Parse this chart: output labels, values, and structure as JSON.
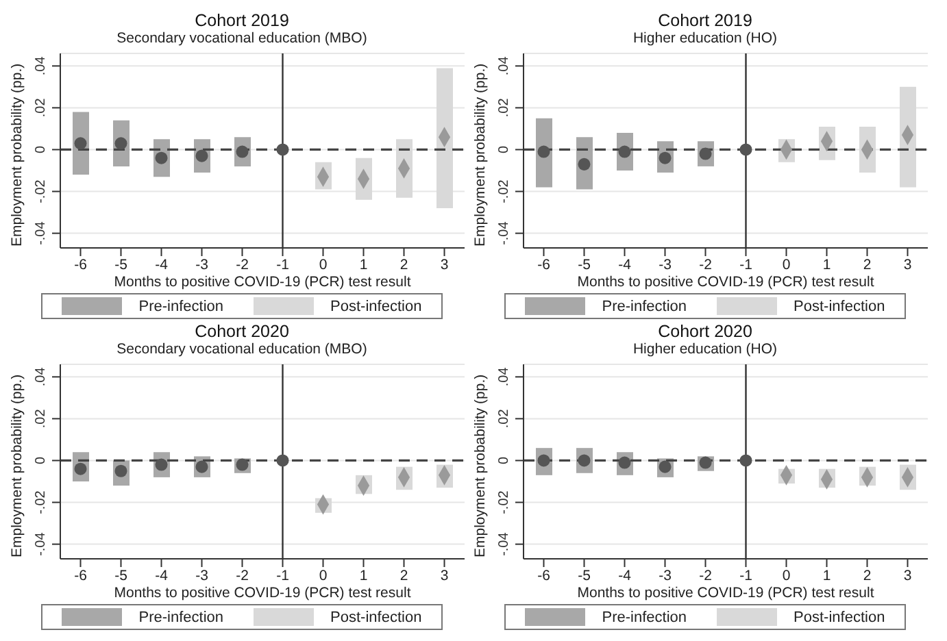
{
  "chart_data": [
    {
      "type": "bar",
      "title": "Cohort 2019",
      "subtitle": "Secondary vocational education (MBO)",
      "xlabel": "Months to positive COVID-19 (PCR) test result",
      "ylabel": "Employment probability (pp.)",
      "categories": [
        "-6",
        "-5",
        "-4",
        "-3",
        "-2",
        "-1",
        "0",
        "1",
        "2",
        "3"
      ],
      "ylim": [
        -0.047,
        0.046
      ],
      "yticks": [
        {
          "value": -0.04,
          "label": "-.04"
        },
        {
          "value": -0.02,
          "label": "-.02"
        },
        {
          "value": 0,
          "label": "0"
        },
        {
          "value": 0.02,
          "label": ".02"
        },
        {
          "value": 0.04,
          "label": ".04"
        }
      ],
      "grid": "y",
      "legend": "bottom",
      "series": [
        {
          "name": "Pre-infection",
          "color": "#a8a8a8",
          "base": [
            -0.012,
            -0.008,
            -0.013,
            -0.011,
            -0.008,
            null,
            null,
            null,
            null,
            null
          ],
          "values": [
            0.03,
            0.022,
            0.018,
            0.016,
            0.014,
            null,
            null,
            null,
            null,
            null
          ]
        },
        {
          "name": "Post-infection",
          "color": "#d9d9d9",
          "base": [
            null,
            null,
            null,
            null,
            null,
            null,
            -0.019,
            -0.024,
            -0.023,
            -0.028
          ],
          "values": [
            null,
            null,
            null,
            null,
            null,
            null,
            0.013,
            0.02,
            0.028,
            0.067
          ]
        },
        {
          "type": "scatter",
          "marker": "circle",
          "color": "#555555",
          "x": [
            "-6",
            "-5",
            "-4",
            "-3",
            "-2",
            "-1"
          ],
          "values": [
            0.003,
            0.003,
            -0.004,
            -0.003,
            -0.001,
            0
          ]
        },
        {
          "type": "scatter",
          "marker": "diamond",
          "color": "#9a9a9a",
          "x": [
            "0",
            "1",
            "2",
            "3"
          ],
          "values": [
            -0.013,
            -0.014,
            -0.009,
            0.006
          ]
        }
      ],
      "ref_lines": [
        {
          "axis": "x",
          "value": "-1",
          "color": "#333333",
          "line_style": "solid"
        },
        {
          "axis": "y",
          "value": 0,
          "color": "#444444",
          "line_style": "dashed"
        }
      ]
    },
    {
      "type": "bar",
      "title": "Cohort 2019",
      "subtitle": "Higher education (HO)",
      "xlabel": "Months to positive COVID-19 (PCR) test result",
      "ylabel": "Employment probability (pp.)",
      "categories": [
        "-6",
        "-5",
        "-4",
        "-3",
        "-2",
        "-1",
        "0",
        "1",
        "2",
        "3"
      ],
      "ylim": [
        -0.047,
        0.046
      ],
      "yticks": [
        {
          "value": -0.04,
          "label": "-.04"
        },
        {
          "value": -0.02,
          "label": "-.02"
        },
        {
          "value": 0,
          "label": "0"
        },
        {
          "value": 0.02,
          "label": ".02"
        },
        {
          "value": 0.04,
          "label": ".04"
        }
      ],
      "grid": "y",
      "legend": "bottom",
      "series": [
        {
          "name": "Pre-infection",
          "color": "#a8a8a8",
          "base": [
            -0.018,
            -0.019,
            -0.01,
            -0.011,
            -0.008,
            null,
            null,
            null,
            null,
            null
          ],
          "values": [
            0.033,
            0.025,
            0.018,
            0.015,
            0.012,
            null,
            null,
            null,
            null,
            null
          ]
        },
        {
          "name": "Post-infection",
          "color": "#d9d9d9",
          "base": [
            null,
            null,
            null,
            null,
            null,
            null,
            -0.006,
            -0.005,
            -0.011,
            -0.018
          ],
          "values": [
            null,
            null,
            null,
            null,
            null,
            null,
            0.011,
            0.016,
            0.022,
            0.048
          ]
        },
        {
          "type": "scatter",
          "marker": "circle",
          "color": "#555555",
          "x": [
            "-6",
            "-5",
            "-4",
            "-3",
            "-2",
            "-1"
          ],
          "values": [
            -0.001,
            -0.007,
            -0.001,
            -0.004,
            -0.002,
            0
          ]
        },
        {
          "type": "scatter",
          "marker": "diamond",
          "color": "#9a9a9a",
          "x": [
            "0",
            "1",
            "2",
            "3"
          ],
          "values": [
            0,
            0.004,
            0,
            0.007
          ]
        }
      ],
      "ref_lines": [
        {
          "axis": "x",
          "value": "-1",
          "color": "#333333",
          "line_style": "solid"
        },
        {
          "axis": "y",
          "value": 0,
          "color": "#444444",
          "line_style": "dashed"
        }
      ]
    },
    {
      "type": "bar",
      "title": "Cohort 2020",
      "subtitle": "Secondary vocational education (MBO)",
      "xlabel": "Months to positive COVID-19 (PCR) test result",
      "ylabel": "Employment probability (pp.)",
      "categories": [
        "-6",
        "-5",
        "-4",
        "-3",
        "-2",
        "-1",
        "0",
        "1",
        "2",
        "3"
      ],
      "ylim": [
        -0.047,
        0.046
      ],
      "yticks": [
        {
          "value": -0.04,
          "label": "-.04"
        },
        {
          "value": -0.02,
          "label": "-.02"
        },
        {
          "value": 0,
          "label": "0"
        },
        {
          "value": 0.02,
          "label": ".02"
        },
        {
          "value": 0.04,
          "label": ".04"
        }
      ],
      "grid": "y",
      "legend": "bottom",
      "series": [
        {
          "name": "Pre-infection",
          "color": "#a8a8a8",
          "base": [
            -0.01,
            -0.012,
            -0.008,
            -0.008,
            -0.006,
            null,
            null,
            null,
            null,
            null
          ],
          "values": [
            0.014,
            0.012,
            0.012,
            0.01,
            0.007,
            null,
            null,
            null,
            null,
            null
          ]
        },
        {
          "name": "Post-infection",
          "color": "#d9d9d9",
          "base": [
            null,
            null,
            null,
            null,
            null,
            null,
            -0.025,
            -0.016,
            -0.014,
            -0.013
          ],
          "values": [
            null,
            null,
            null,
            null,
            null,
            null,
            0.007,
            0.009,
            0.011,
            0.011
          ]
        },
        {
          "type": "scatter",
          "marker": "circle",
          "color": "#555555",
          "x": [
            "-6",
            "-5",
            "-4",
            "-3",
            "-2",
            "-1"
          ],
          "values": [
            -0.004,
            -0.005,
            -0.002,
            -0.003,
            -0.002,
            0
          ]
        },
        {
          "type": "scatter",
          "marker": "diamond",
          "color": "#9a9a9a",
          "x": [
            "0",
            "1",
            "2",
            "3"
          ],
          "values": [
            -0.021,
            -0.012,
            -0.008,
            -0.007
          ]
        }
      ],
      "ref_lines": [
        {
          "axis": "x",
          "value": "-1",
          "color": "#333333",
          "line_style": "solid"
        },
        {
          "axis": "y",
          "value": 0,
          "color": "#444444",
          "line_style": "dashed"
        }
      ]
    },
    {
      "type": "bar",
      "title": "Cohort 2020",
      "subtitle": "Higher education (HO)",
      "xlabel": "Months to positive COVID-19 (PCR) test result",
      "ylabel": "Employment probability (pp.)",
      "categories": [
        "-6",
        "-5",
        "-4",
        "-3",
        "-2",
        "-1",
        "0",
        "1",
        "2",
        "3"
      ],
      "ylim": [
        -0.047,
        0.046
      ],
      "yticks": [
        {
          "value": -0.04,
          "label": "-.04"
        },
        {
          "value": -0.02,
          "label": "-.02"
        },
        {
          "value": 0,
          "label": "0"
        },
        {
          "value": 0.02,
          "label": ".02"
        },
        {
          "value": 0.04,
          "label": ".04"
        }
      ],
      "grid": "y",
      "legend": "bottom",
      "series": [
        {
          "name": "Pre-infection",
          "color": "#a8a8a8",
          "base": [
            -0.007,
            -0.006,
            -0.007,
            -0.008,
            -0.005,
            null,
            null,
            null,
            null,
            null
          ],
          "values": [
            0.013,
            0.012,
            0.011,
            0.009,
            0.007,
            null,
            null,
            null,
            null,
            null
          ]
        },
        {
          "name": "Post-infection",
          "color": "#d9d9d9",
          "base": [
            null,
            null,
            null,
            null,
            null,
            null,
            -0.011,
            -0.013,
            -0.012,
            -0.014
          ],
          "values": [
            null,
            null,
            null,
            null,
            null,
            null,
            0.007,
            0.009,
            0.009,
            0.012
          ]
        },
        {
          "type": "scatter",
          "marker": "circle",
          "color": "#555555",
          "x": [
            "-6",
            "-5",
            "-4",
            "-3",
            "-2",
            "-1"
          ],
          "values": [
            0,
            0,
            -0.001,
            -0.003,
            -0.001,
            0
          ]
        },
        {
          "type": "scatter",
          "marker": "diamond",
          "color": "#9a9a9a",
          "x": [
            "0",
            "1",
            "2",
            "3"
          ],
          "values": [
            -0.007,
            -0.009,
            -0.008,
            -0.008
          ]
        }
      ],
      "ref_lines": [
        {
          "axis": "x",
          "value": "-1",
          "color": "#333333",
          "line_style": "solid"
        },
        {
          "axis": "y",
          "value": 0,
          "color": "#444444",
          "line_style": "dashed"
        }
      ]
    }
  ]
}
